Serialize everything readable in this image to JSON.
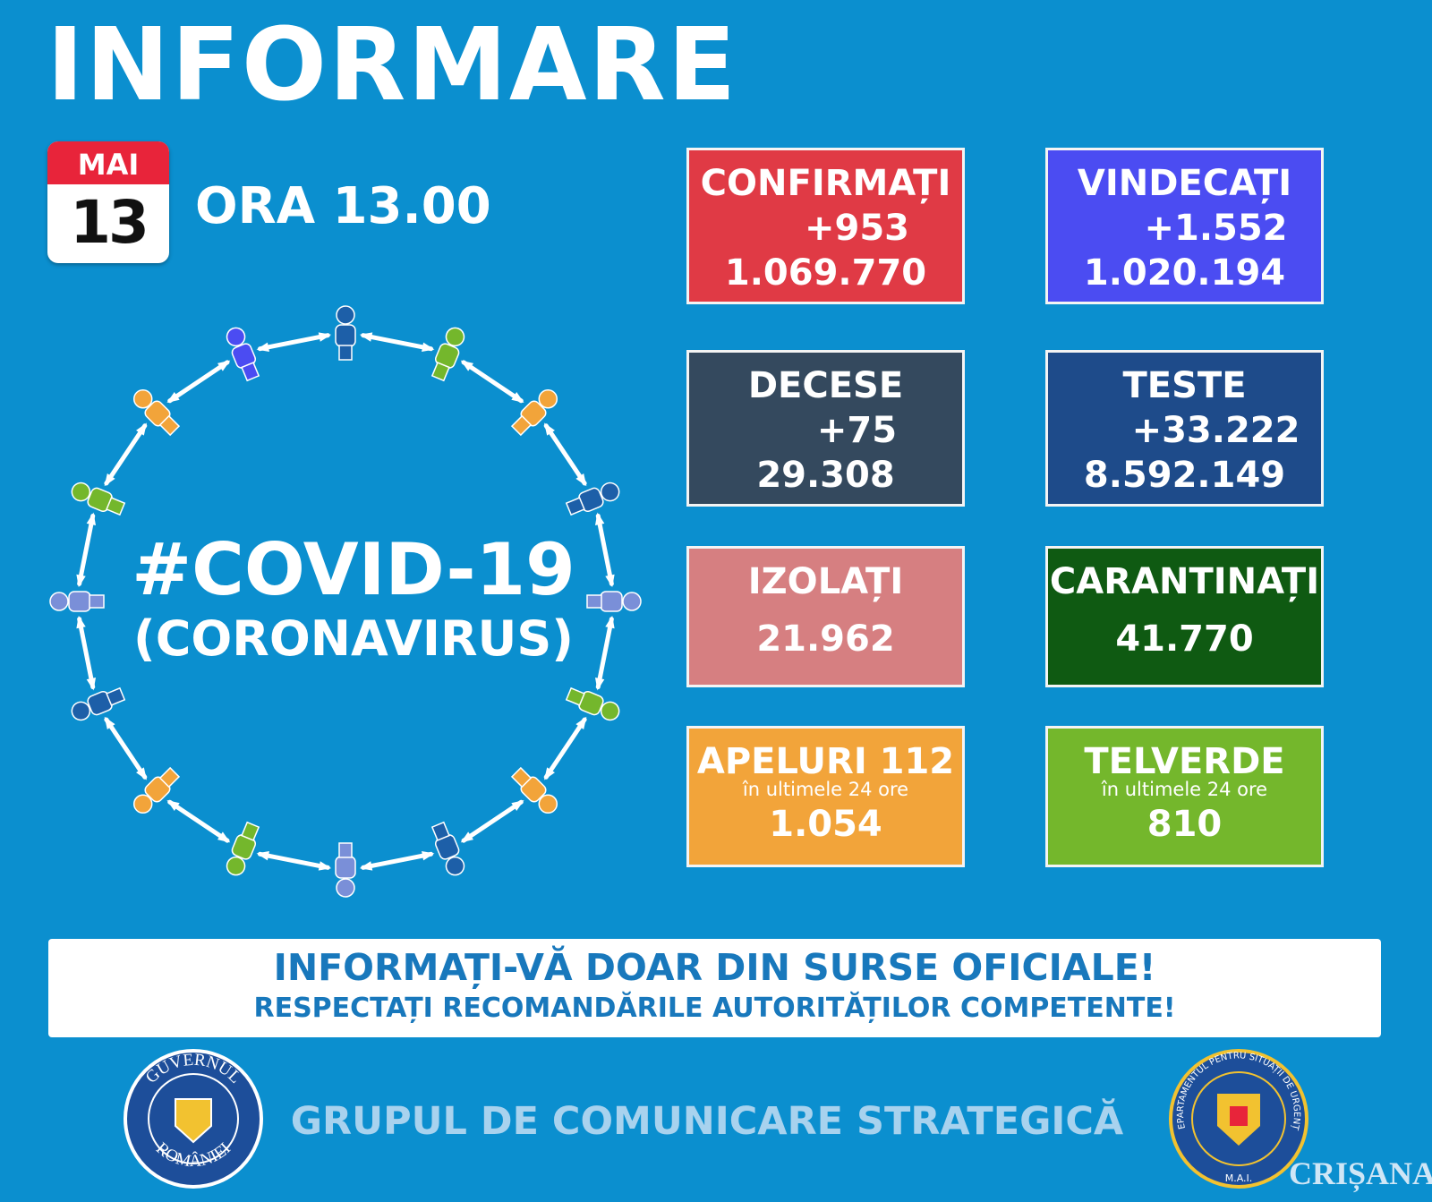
{
  "header": {
    "title": "INFORMARE",
    "month": "MAI",
    "day": "13",
    "time": "ORA 13.00"
  },
  "covid": {
    "hashtag": "#COVID-19",
    "subtitle": "(CORONAVIRUS)"
  },
  "cards": [
    {
      "title": "CONFIRMAȚI",
      "delta": "+953",
      "total": "1.069.770",
      "color": "#e03a45"
    },
    {
      "title": "VINDECAȚI",
      "delta": "+1.552",
      "total": "1.020.194",
      "color": "#4b4cf2"
    },
    {
      "title": "DECESE",
      "delta": "+75",
      "total": "29.308",
      "color": "#34495e"
    },
    {
      "title": "TESTE",
      "delta": "+33.222",
      "total": "8.592.149",
      "color": "#1e4b8a"
    },
    {
      "title": "IZOLAȚI",
      "total": "21.962",
      "color": "#d67f81"
    },
    {
      "title": "CARANTINAȚI",
      "total": "41.770",
      "color": "#0f5a12"
    },
    {
      "title": "APELURI 112",
      "subtitle": "în ultimele 24 ore",
      "total": "1.054",
      "color": "#f2a43a"
    },
    {
      "title": "TELVERDE",
      "subtitle": "în ultimele 24 ore",
      "total": "810",
      "color": "#74b72c"
    }
  ],
  "banner": {
    "line1": "INFORMAȚI-VĂ DOAR DIN SURSE OFICIALE!",
    "line2": "RESPECTAȚI RECOMANDĂRILE AUTORITĂȚILOR COMPETENTE!"
  },
  "footer": {
    "text": "GRUPUL DE COMUNICARE STRATEGICĂ",
    "gov_top": "GUVERNUL",
    "gov_bottom": "ROMÂNIEI",
    "dsu_ring": "DEPARTAMENTUL PENTRU SITUAȚII DE URGENȚĂ",
    "dsu_bottom": "M.A.I.",
    "watermark": "CRIȘANA"
  }
}
